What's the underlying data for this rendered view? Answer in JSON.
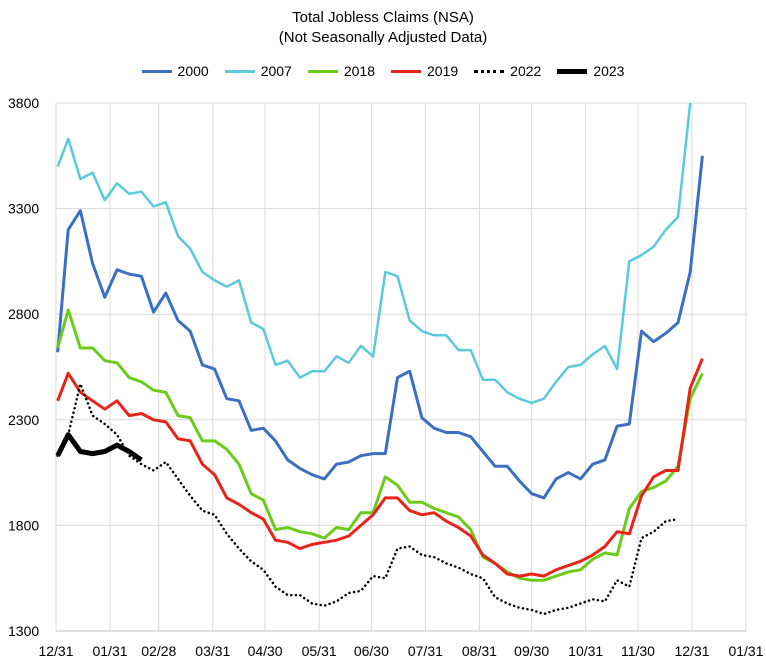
{
  "chart_data": {
    "type": "line",
    "title": "Total Jobless Claims (NSA)",
    "subtitle": "(Not Seasonally Adjusted Data)",
    "xlabel": "",
    "ylabel": "",
    "ylim": [
      1300,
      3800
    ],
    "yticks": [
      "1300",
      "1800",
      "2300",
      "2800",
      "3300",
      "3800"
    ],
    "ytick_values": [
      1300,
      1800,
      2300,
      2800,
      3300,
      3800
    ],
    "xticks": [
      "12/31",
      "01/31",
      "02/28",
      "03/31",
      "04/30",
      "05/31",
      "06/30",
      "07/31",
      "08/31",
      "09/30",
      "10/31",
      "11/30",
      "12/31",
      "01/31"
    ],
    "xtick_days": [
      0,
      31,
      59,
      90,
      120,
      151,
      181,
      212,
      243,
      273,
      304,
      334,
      365,
      396
    ],
    "xlim": [
      0,
      396
    ],
    "legend_position": "top",
    "grid": true,
    "series": [
      {
        "name": "2000",
        "color": "#3A6FC2",
        "style": "solid",
        "width": 3,
        "x": [
          1,
          7,
          14,
          21,
          28,
          35,
          42,
          49,
          56,
          63,
          70,
          77,
          84,
          91,
          98,
          105,
          112,
          119,
          126,
          133,
          140,
          147,
          154,
          161,
          168,
          175,
          182,
          189,
          196,
          203,
          210,
          217,
          224,
          231,
          238,
          245,
          252,
          259,
          266,
          273,
          280,
          287,
          294,
          301,
          308,
          315,
          322,
          329,
          336,
          343,
          350,
          357,
          364,
          371
        ],
        "values": [
          2620,
          3200,
          3290,
          3040,
          2880,
          3010,
          2990,
          2980,
          2810,
          2900,
          2770,
          2720,
          2560,
          2540,
          2400,
          2390,
          2250,
          2260,
          2200,
          2110,
          2070,
          2040,
          2020,
          2090,
          2100,
          2130,
          2140,
          2140,
          2500,
          2530,
          2310,
          2260,
          2240,
          2240,
          2220,
          2150,
          2080,
          2080,
          2010,
          1950,
          1930,
          2020,
          2050,
          2020,
          2090,
          2110,
          2270,
          2280,
          2720,
          2670,
          2710,
          2760,
          3000,
          3550
        ]
      },
      {
        "name": "2007",
        "color": "#5BC8DC",
        "style": "solid",
        "width": 2.5,
        "x": [
          1,
          7,
          14,
          21,
          28,
          35,
          42,
          49,
          56,
          63,
          70,
          77,
          84,
          91,
          98,
          105,
          112,
          119,
          126,
          133,
          140,
          147,
          154,
          161,
          168,
          175,
          182,
          189,
          196,
          203,
          210,
          217,
          224,
          231,
          238,
          245,
          252,
          259,
          266,
          273,
          280,
          287,
          294,
          301,
          308,
          315,
          322,
          329,
          336,
          343,
          350,
          357,
          364
        ],
        "values": [
          3500,
          3630,
          3440,
          3470,
          3340,
          3420,
          3370,
          3380,
          3310,
          3330,
          3170,
          3110,
          3000,
          2960,
          2930,
          2960,
          2760,
          2730,
          2560,
          2580,
          2500,
          2530,
          2530,
          2600,
          2570,
          2650,
          2600,
          3000,
          2980,
          2770,
          2720,
          2700,
          2700,
          2630,
          2630,
          2490,
          2490,
          2430,
          2400,
          2380,
          2400,
          2480,
          2550,
          2560,
          2610,
          2650,
          2540,
          3050,
          3080,
          3120,
          3200,
          3260,
          3800
        ]
      },
      {
        "name": "2018",
        "color": "#6CCB1A",
        "style": "solid",
        "width": 3,
        "x": [
          1,
          7,
          14,
          21,
          28,
          35,
          42,
          49,
          56,
          63,
          70,
          77,
          84,
          91,
          98,
          105,
          112,
          119,
          126,
          133,
          140,
          147,
          154,
          161,
          168,
          175,
          182,
          189,
          196,
          203,
          210,
          217,
          224,
          231,
          238,
          245,
          252,
          259,
          266,
          273,
          280,
          287,
          294,
          301,
          308,
          315,
          322,
          329,
          336,
          343,
          350,
          357,
          364,
          371
        ],
        "values": [
          2640,
          2820,
          2640,
          2640,
          2580,
          2570,
          2500,
          2480,
          2440,
          2430,
          2320,
          2310,
          2200,
          2200,
          2160,
          2090,
          1950,
          1920,
          1780,
          1790,
          1770,
          1760,
          1740,
          1790,
          1780,
          1860,
          1860,
          2030,
          1990,
          1910,
          1910,
          1880,
          1860,
          1840,
          1780,
          1650,
          1620,
          1580,
          1550,
          1540,
          1540,
          1560,
          1580,
          1590,
          1640,
          1670,
          1660,
          1880,
          1960,
          1980,
          2010,
          2080,
          2400,
          2520
        ]
      },
      {
        "name": "2019",
        "color": "#E8231A",
        "style": "solid",
        "width": 3,
        "x": [
          1,
          7,
          14,
          21,
          28,
          35,
          42,
          49,
          56,
          63,
          70,
          77,
          84,
          91,
          98,
          105,
          112,
          119,
          126,
          133,
          140,
          147,
          154,
          161,
          168,
          175,
          182,
          189,
          196,
          203,
          210,
          217,
          224,
          231,
          238,
          245,
          252,
          259,
          266,
          273,
          280,
          287,
          294,
          301,
          308,
          315,
          322,
          329,
          336,
          343,
          350,
          357,
          364,
          371
        ],
        "values": [
          2390,
          2520,
          2430,
          2390,
          2350,
          2390,
          2320,
          2330,
          2300,
          2290,
          2210,
          2200,
          2090,
          2040,
          1930,
          1900,
          1860,
          1830,
          1730,
          1720,
          1690,
          1710,
          1720,
          1730,
          1750,
          1800,
          1850,
          1930,
          1930,
          1870,
          1850,
          1860,
          1820,
          1790,
          1750,
          1660,
          1620,
          1570,
          1560,
          1570,
          1560,
          1590,
          1610,
          1630,
          1660,
          1700,
          1770,
          1760,
          1940,
          2030,
          2060,
          2060,
          2450,
          2590
        ]
      },
      {
        "name": "2022",
        "color": "#000000",
        "style": "dotted",
        "width": 2.5,
        "x": [
          1,
          7,
          14,
          21,
          28,
          35,
          42,
          49,
          56,
          63,
          70,
          77,
          84,
          91,
          98,
          105,
          112,
          119,
          126,
          133,
          140,
          147,
          154,
          161,
          168,
          175,
          182,
          189,
          196,
          203,
          210,
          217,
          224,
          231,
          238,
          245,
          252,
          259,
          266,
          273,
          280,
          287,
          294,
          301,
          308,
          315,
          322,
          329,
          336,
          343,
          350,
          357
        ],
        "values": [
          2130,
          2230,
          2470,
          2320,
          2280,
          2230,
          2130,
          2090,
          2060,
          2100,
          2020,
          1940,
          1870,
          1850,
          1760,
          1690,
          1630,
          1590,
          1510,
          1470,
          1470,
          1430,
          1420,
          1440,
          1480,
          1490,
          1560,
          1550,
          1690,
          1700,
          1660,
          1650,
          1620,
          1600,
          1570,
          1550,
          1460,
          1430,
          1410,
          1400,
          1380,
          1400,
          1410,
          1430,
          1450,
          1440,
          1540,
          1510,
          1740,
          1770,
          1820,
          1830
        ]
      },
      {
        "name": "2023",
        "color": "#000000",
        "style": "solid",
        "width": 5,
        "x": [
          1,
          7,
          14,
          21,
          28,
          35,
          42,
          49
        ],
        "values": [
          2130,
          2230,
          2150,
          2140,
          2150,
          2180,
          2150,
          2110
        ]
      }
    ]
  }
}
